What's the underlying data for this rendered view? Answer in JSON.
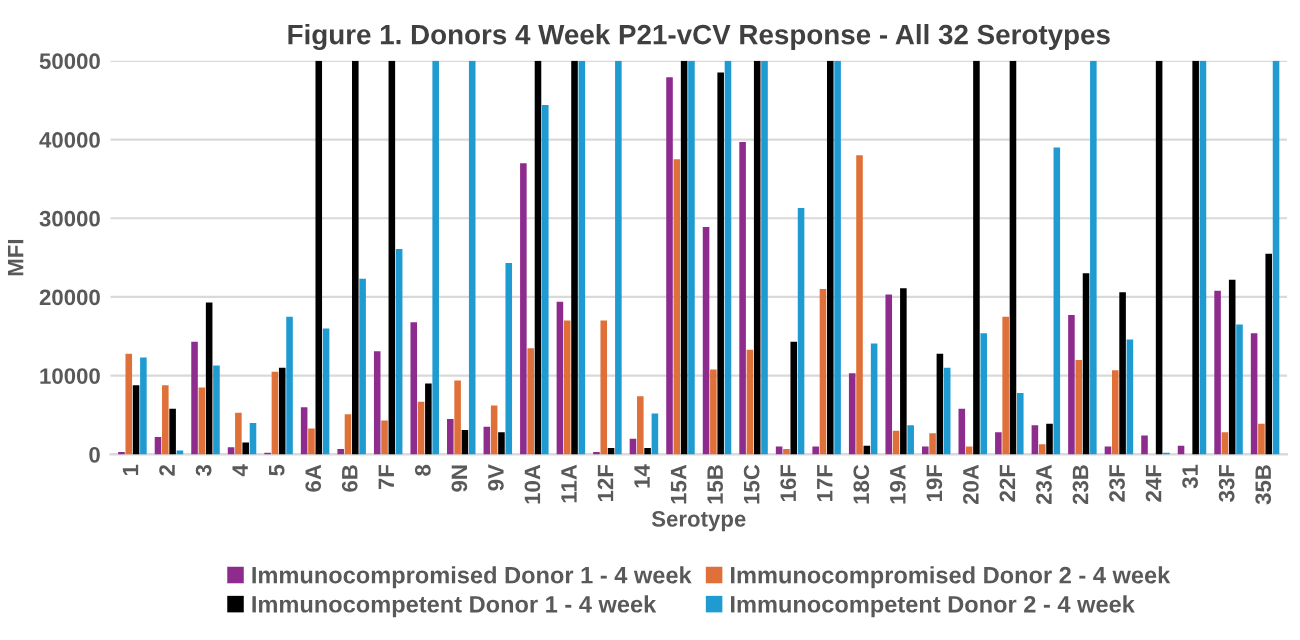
{
  "chart_data": {
    "type": "bar",
    "title": "Figure 1. Donors 4 Week P21-vCV Response - All 32 Serotypes",
    "xlabel": "Serotype",
    "ylabel": "MFI",
    "categories": [
      "1",
      "2",
      "3",
      "4",
      "5",
      "6A",
      "6B",
      "7F",
      "8",
      "9N",
      "9V",
      "10A",
      "11A",
      "12F",
      "14",
      "15A",
      "15B",
      "15C",
      "16F",
      "17F",
      "18C",
      "19A",
      "19F",
      "20A",
      "22F",
      "23A",
      "23B",
      "23F",
      "24F",
      "31",
      "33F",
      "35B"
    ],
    "series": [
      {
        "name": "Immunocompromised Donor 1 - 4 week",
        "color": "#8e2c8e",
        "values": [
          300,
          2200,
          14300,
          900,
          200,
          6000,
          700,
          13100,
          16800,
          4500,
          3500,
          37000,
          19400,
          300,
          2000,
          47900,
          28900,
          39700,
          1000,
          1000,
          10300,
          20300,
          1000,
          5800,
          2800,
          3700,
          17700,
          1000,
          2400,
          1100,
          20800,
          15400
        ]
      },
      {
        "name": "Immunocompromised Donor 2 - 4 week",
        "color": "#e0703a",
        "values": [
          12800,
          8800,
          8500,
          5300,
          10500,
          3300,
          5100,
          4300,
          6700,
          9400,
          6200,
          13500,
          17000,
          17000,
          7400,
          37500,
          10800,
          13300,
          700,
          21000,
          38000,
          3000,
          2700,
          1000,
          17500,
          1300,
          12000,
          10700,
          0,
          0,
          2800,
          3900
        ]
      },
      {
        "name": "Immunocompetent Donor 1 - 4 week",
        "color": "#000000",
        "values": [
          8800,
          5800,
          19300,
          1500,
          11000,
          50000,
          50000,
          50000,
          9000,
          3100,
          2800,
          50000,
          50000,
          800,
          800,
          50000,
          48500,
          50000,
          14300,
          50000,
          1100,
          21100,
          12800,
          50000,
          50000,
          3900,
          23000,
          20600,
          50000,
          50000,
          22200,
          25500
        ]
      },
      {
        "name": "Immunocompetent Donor 2 - 4 week",
        "color": "#1f9bd1",
        "values": [
          12300,
          500,
          11300,
          4000,
          17500,
          16000,
          22300,
          26100,
          50000,
          50000,
          24300,
          44400,
          50000,
          50000,
          5200,
          50000,
          50000,
          50000,
          31300,
          50000,
          14100,
          3700,
          11000,
          15400,
          7800,
          39000,
          50000,
          14600,
          200,
          50000,
          16500,
          50000
        ]
      }
    ],
    "ylim": [
      0,
      50000
    ],
    "yticks": [
      0,
      10000,
      20000,
      30000,
      40000,
      50000
    ],
    "grid": "y",
    "legend": "bottom"
  }
}
